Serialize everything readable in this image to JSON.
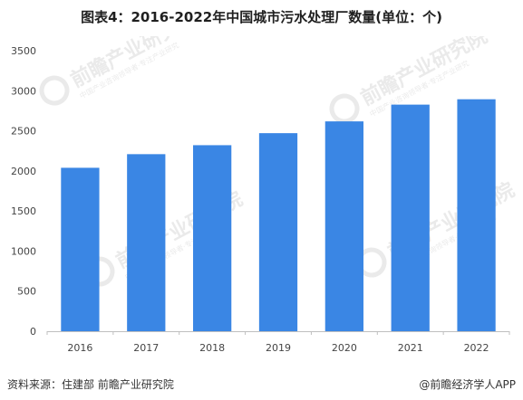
{
  "header": {
    "title": "图表4：2016-2022年中国城市污水处理厂数量(单位：个)"
  },
  "watermark": {
    "brand": "前瞻产业研究院",
    "tagline": "中国产业咨询领导者·专注产业研究"
  },
  "footer": {
    "source": "资料来源：住建部 前瞻产业研究院",
    "credit": "@前瞻经济学人APP"
  },
  "colors": {
    "bar": "#3a86e4",
    "axis": "#bfbfbf"
  },
  "chart_data": {
    "type": "bar",
    "title": "图表4：2016-2022年中国城市污水处理厂数量(单位：个)",
    "categories": [
      "2016",
      "2017",
      "2018",
      "2019",
      "2020",
      "2021",
      "2022"
    ],
    "values": [
      2039,
      2209,
      2321,
      2471,
      2618,
      2827,
      2894
    ],
    "ylim": [
      0,
      3500
    ],
    "yticks": [
      0,
      500,
      1000,
      1500,
      2000,
      2500,
      3000,
      3500
    ],
    "grid": false,
    "legend": "none"
  }
}
